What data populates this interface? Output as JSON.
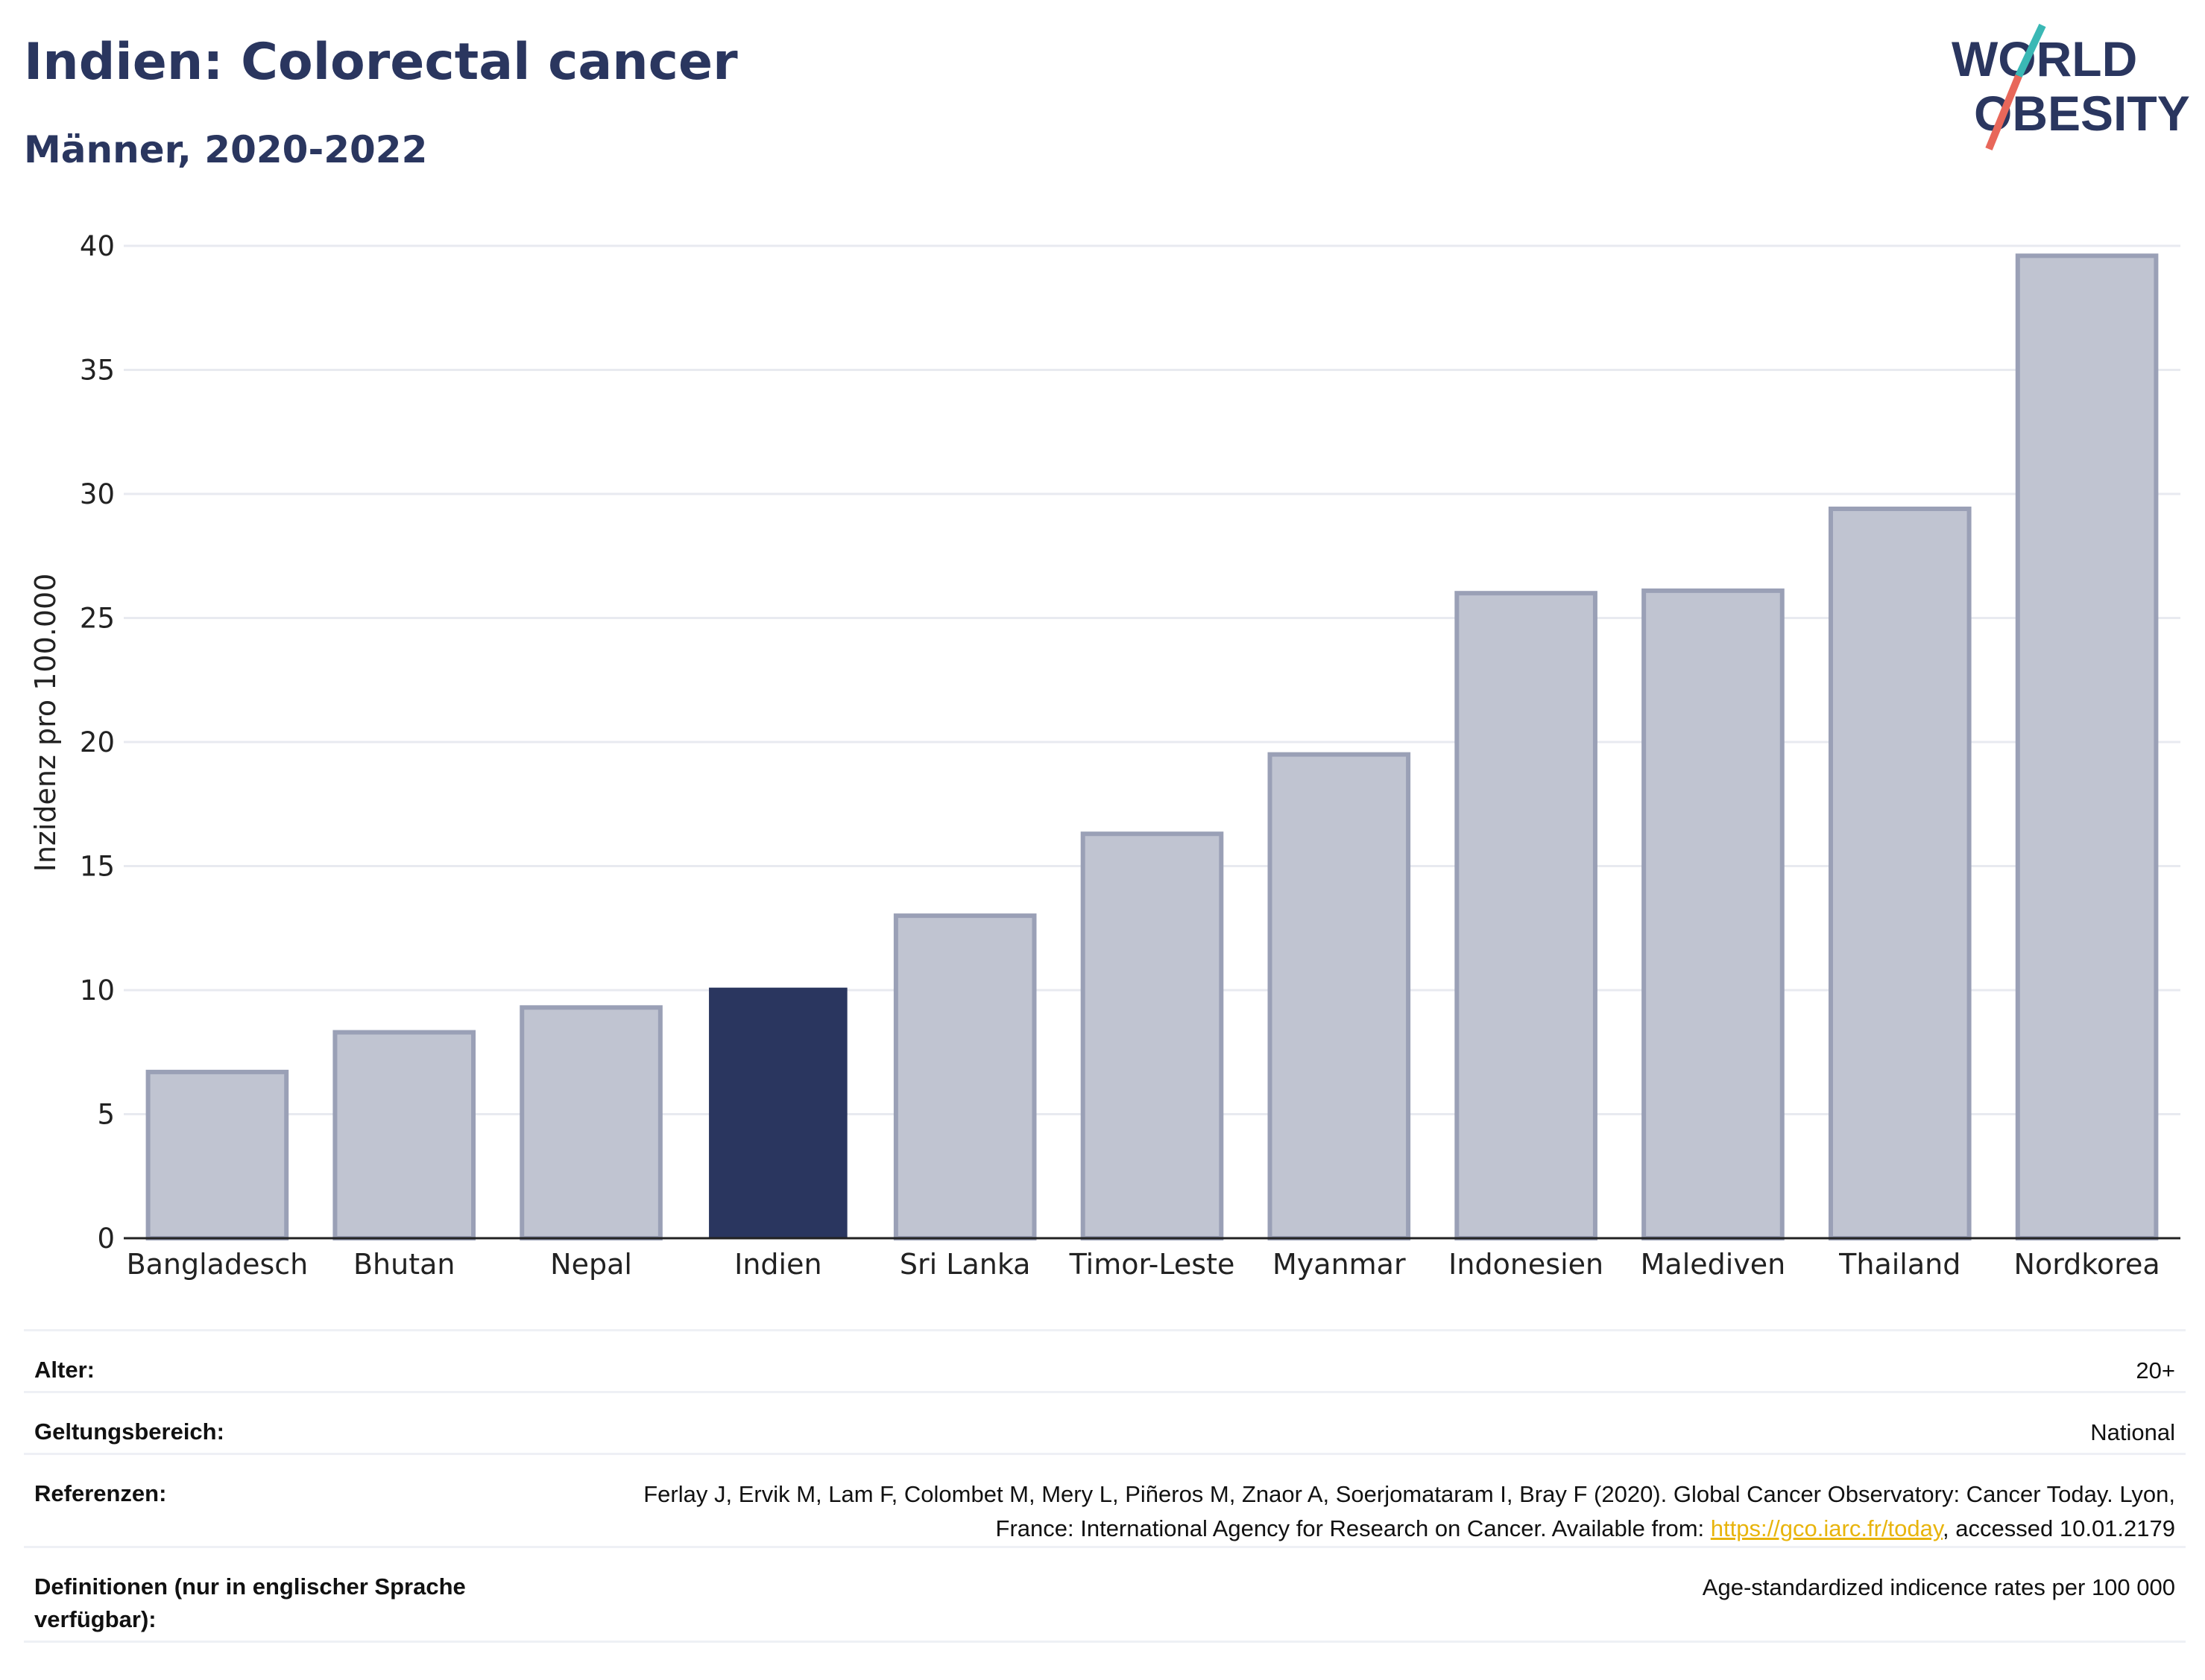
{
  "header": {
    "title": "Indien: Colorectal cancer",
    "subtitle": "Männer, 2020-2022"
  },
  "logo": {
    "line1": "WORLD",
    "line2": "OBESITY",
    "icon": "world-obesity-logo",
    "slash_color_top": "#3ab8b5",
    "slash_color_bottom": "#e8675a"
  },
  "colors": {
    "highlight": "#2a365f",
    "bar": "#c0c4d1",
    "bar_border": "#9aa0b6",
    "text": "#2a365f"
  },
  "chart_data": {
    "type": "bar",
    "categories": [
      "Bangladesch",
      "Bhutan",
      "Nepal",
      "Indien",
      "Sri Lanka",
      "Timor-Leste",
      "Myanmar",
      "Indonesien",
      "Malediven",
      "Thailand",
      "Nordkorea"
    ],
    "values": [
      6.7,
      8.3,
      9.3,
      10.1,
      13.0,
      16.3,
      19.5,
      26.0,
      26.1,
      29.4,
      39.6
    ],
    "highlight": "Indien",
    "title": "Indien: Colorectal cancer",
    "subtitle": "Männer, 2020-2022",
    "xlabel": "",
    "ylabel": "Inzidenz pro 100.000",
    "ylim": [
      0,
      40
    ],
    "yticks": [
      0,
      5,
      10,
      15,
      20,
      25,
      30,
      35,
      40
    ],
    "grid": true,
    "legend": "none"
  },
  "info": {
    "age_label": "Alter:",
    "age_value": "20+",
    "scope_label": "Geltungsbereich:",
    "scope_value": "National",
    "ref_label": "Referenzen:",
    "ref_text1": "Ferlay J, Ervik M, Lam F, Colombet M, Mery L, Piñeros M, Znaor A, Soerjomataram I, Bray F (2020). Global Cancer Observatory: Cancer Today. Lyon, France: International Agency for Research on Cancer. Available from: ",
    "ref_link": "https://gco.iarc.fr/today",
    "ref_text2": ", accessed 10.01.2179",
    "def_label": "Definitionen (nur in englischer Sprache verfügbar):",
    "def_value": "Age-standardized indicence rates per 100 000"
  }
}
